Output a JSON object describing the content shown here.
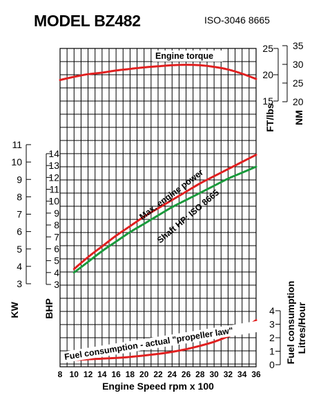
{
  "title": "MODEL BZ482",
  "subtitle": "ISO-3046 8665",
  "chart_data": {
    "type": "line",
    "x": {
      "label": "Engine Speed  rpm x 100",
      "range": [
        8,
        36
      ],
      "ticks": [
        8,
        10,
        12,
        14,
        16,
        18,
        20,
        22,
        24,
        26,
        28,
        30,
        32,
        34,
        36
      ]
    },
    "axes": {
      "kw": {
        "label": "KW",
        "range": [
          3,
          11
        ],
        "ticks": [
          3,
          4,
          5,
          6,
          7,
          8,
          9,
          10,
          11
        ]
      },
      "bhp": {
        "label": "BHP",
        "range": [
          3,
          14
        ],
        "ticks": [
          3,
          4,
          5,
          6,
          7,
          8,
          9,
          10,
          11,
          12,
          13,
          14
        ]
      },
      "ftlbs": {
        "label": "FT/lbs",
        "range": [
          15,
          25
        ],
        "ticks": [
          15,
          20,
          25
        ]
      },
      "nm": {
        "label": "NM",
        "range": [
          20,
          35
        ],
        "ticks": [
          20,
          25,
          30,
          35
        ]
      },
      "fuel": {
        "label": "Fuel consumption Litres/Hour",
        "range": [
          0,
          4
        ],
        "ticks": [
          0,
          1,
          2,
          3,
          4
        ]
      }
    },
    "series": [
      {
        "name": "Engine torque",
        "axis": "ftlbs",
        "color": "#e02020",
        "x": [
          8,
          10,
          12,
          14,
          16,
          18,
          20,
          22,
          24,
          26,
          28,
          30,
          32,
          34,
          36
        ],
        "y": [
          19.0,
          19.6,
          20.1,
          20.4,
          20.8,
          21.1,
          21.4,
          21.6,
          21.8,
          21.9,
          21.8,
          21.5,
          21.0,
          20.2,
          19.2
        ]
      },
      {
        "name": "Max. engine power",
        "axis": "bhp",
        "color": "#e02020",
        "x": [
          10,
          12,
          14,
          16,
          18,
          20,
          22,
          24,
          26,
          28,
          30,
          32,
          34,
          36
        ],
        "y": [
          4.3,
          5.3,
          6.2,
          7.1,
          7.9,
          8.7,
          9.4,
          10.1,
          10.8,
          11.5,
          12.1,
          12.7,
          13.3,
          13.9
        ]
      },
      {
        "name": "Shaft HP: ISO 8665",
        "axis": "bhp",
        "color": "#1a9a3c",
        "x": [
          10,
          12,
          14,
          16,
          18,
          20,
          22,
          24,
          26,
          28,
          30,
          32,
          34,
          36
        ],
        "y": [
          4.0,
          4.9,
          5.8,
          6.6,
          7.4,
          8.1,
          8.8,
          9.5,
          10.1,
          10.7,
          11.3,
          11.9,
          12.4,
          12.9
        ]
      },
      {
        "name": "Fuel consumption - actual \"propeller law\"",
        "axis": "fuel",
        "color": "#e02020",
        "x": [
          10,
          12,
          14,
          16,
          18,
          20,
          22,
          24,
          26,
          28,
          30,
          32,
          34,
          36
        ],
        "y": [
          0.35,
          0.4,
          0.45,
          0.5,
          0.58,
          0.68,
          0.8,
          0.95,
          1.15,
          1.4,
          1.7,
          2.1,
          2.6,
          3.3
        ]
      }
    ]
  }
}
